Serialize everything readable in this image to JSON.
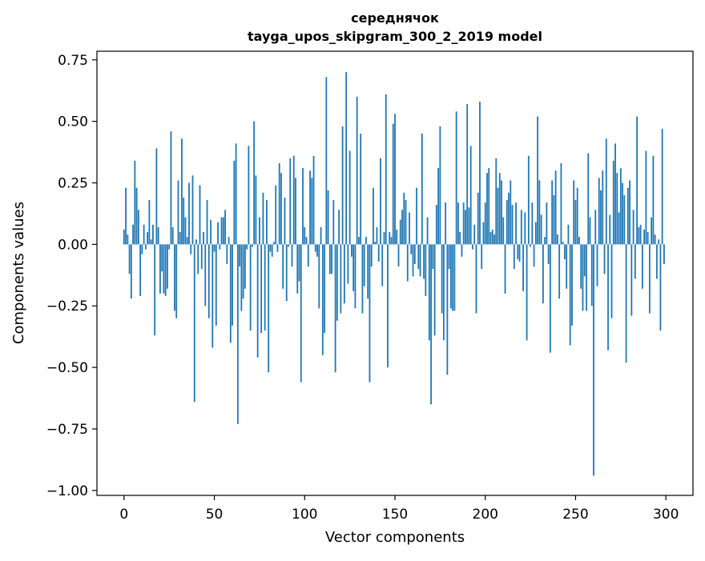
{
  "chart_data": {
    "type": "bar",
    "title": "середнячок",
    "subtitle": "tayga_upos_skipgram_300_2_2019 model",
    "xlabel": "Vector components",
    "ylabel": "Components values",
    "xlim": [
      -15,
      315
    ],
    "ylim": [
      -1.02,
      0.785
    ],
    "xticks": [
      0,
      50,
      100,
      150,
      200,
      250,
      300
    ],
    "xtick_labels": [
      "0",
      "50",
      "100",
      "150",
      "200",
      "250",
      "300"
    ],
    "yticks": [
      -1.0,
      -0.75,
      -0.5,
      -0.25,
      0.0,
      0.25,
      0.5,
      0.75
    ],
    "ytick_labels": [
      "−1.00",
      "−0.75",
      "−0.50",
      "−0.25",
      "0.00",
      "0.25",
      "0.50",
      "0.75"
    ],
    "grid": false,
    "bar_color": "#1f77b4",
    "x": [
      0,
      1,
      2,
      3,
      4,
      5,
      6,
      7,
      8,
      9,
      10,
      11,
      12,
      13,
      14,
      15,
      16,
      17,
      18,
      19,
      20,
      21,
      22,
      23,
      24,
      25,
      26,
      27,
      28,
      29,
      30,
      31,
      32,
      33,
      34,
      35,
      36,
      37,
      38,
      39,
      40,
      41,
      42,
      43,
      44,
      45,
      46,
      47,
      48,
      49,
      50,
      51,
      52,
      53,
      54,
      55,
      56,
      57,
      58,
      59,
      60,
      61,
      62,
      63,
      64,
      65,
      66,
      67,
      68,
      69,
      70,
      71,
      72,
      73,
      74,
      75,
      76,
      77,
      78,
      79,
      80,
      81,
      82,
      83,
      84,
      85,
      86,
      87,
      88,
      89,
      90,
      91,
      92,
      93,
      94,
      95,
      96,
      97,
      98,
      99,
      100,
      101,
      102,
      103,
      104,
      105,
      106,
      107,
      108,
      109,
      110,
      111,
      112,
      113,
      114,
      115,
      116,
      117,
      118,
      119,
      120,
      121,
      122,
      123,
      124,
      125,
      126,
      127,
      128,
      129,
      130,
      131,
      132,
      133,
      134,
      135,
      136,
      137,
      138,
      139,
      140,
      141,
      142,
      143,
      144,
      145,
      146,
      147,
      148,
      149,
      150,
      151,
      152,
      153,
      154,
      155,
      156,
      157,
      158,
      159,
      160,
      161,
      162,
      163,
      164,
      165,
      166,
      167,
      168,
      169,
      170,
      171,
      172,
      173,
      174,
      175,
      176,
      177,
      178,
      179,
      180,
      181,
      182,
      183,
      184,
      185,
      186,
      187,
      188,
      189,
      190,
      191,
      192,
      193,
      194,
      195,
      196,
      197,
      198,
      199,
      200,
      201,
      202,
      203,
      204,
      205,
      206,
      207,
      208,
      209,
      210,
      211,
      212,
      213,
      214,
      215,
      216,
      217,
      218,
      219,
      220,
      221,
      222,
      223,
      224,
      225,
      226,
      227,
      228,
      229,
      230,
      231,
      232,
      233,
      234,
      235,
      236,
      237,
      238,
      239,
      240,
      241,
      242,
      243,
      244,
      245,
      246,
      247,
      248,
      249,
      250,
      251,
      252,
      253,
      254,
      255,
      256,
      257,
      258,
      259,
      260,
      261,
      262,
      263,
      264,
      265,
      266,
      267,
      268,
      269,
      270,
      271,
      272,
      273,
      274,
      275,
      276,
      277,
      278,
      279,
      280,
      281,
      282,
      283,
      284,
      285,
      286,
      287,
      288,
      289,
      290,
      291,
      292,
      293,
      294,
      295,
      296,
      297,
      298,
      299
    ],
    "values": [
      0.06,
      0.23,
      0.04,
      -0.12,
      -0.22,
      0.08,
      0.34,
      0.23,
      0.14,
      -0.21,
      -0.04,
      0.08,
      -0.02,
      0.05,
      0.18,
      0.02,
      0.08,
      -0.37,
      0.39,
      0.07,
      -0.2,
      -0.11,
      -0.2,
      -0.21,
      -0.18,
      -0.02,
      0.46,
      0.07,
      -0.27,
      -0.3,
      0.26,
      0.05,
      0.43,
      0.19,
      0.11,
      0.03,
      0.25,
      -0.04,
      0.28,
      -0.64,
      0.02,
      -0.12,
      0.24,
      -0.1,
      0.05,
      -0.25,
      0.18,
      -0.3,
      0.1,
      -0.42,
      -0.03,
      -0.33,
      0.09,
      -0.02,
      0.11,
      0.11,
      0.14,
      -0.08,
      0.03,
      -0.4,
      -0.33,
      0.34,
      0.41,
      -0.73,
      -0.09,
      -0.27,
      -0.22,
      -0.18,
      -0.02,
      0.4,
      -0.35,
      -0.01,
      0.5,
      0.28,
      -0.46,
      0.11,
      -0.36,
      0.21,
      -0.35,
      0.18,
      -0.52,
      -0.03,
      -0.05,
      0.01,
      0.24,
      -0.03,
      0.33,
      0.29,
      -0.18,
      0.19,
      -0.23,
      -0.01,
      0.35,
      -0.09,
      0.36,
      0.27,
      -0.2,
      -0.15,
      -0.56,
      0.31,
      0.07,
      0.03,
      -0.09,
      0.3,
      0.27,
      0.36,
      -0.03,
      -0.05,
      -0.26,
      0.07,
      -0.45,
      -0.36,
      0.68,
      0.22,
      -0.12,
      -0.12,
      0.18,
      -0.52,
      -0.31,
      0.14,
      -0.28,
      0.48,
      -0.24,
      0.7,
      -0.16,
      0.38,
      -0.05,
      -0.19,
      -0.26,
      0.6,
      0.03,
      0.45,
      -0.28,
      -0.17,
      0.03,
      -0.22,
      -0.56,
      -0.09,
      0.23,
      0.01,
      0.07,
      -0.07,
      0.35,
      -0.17,
      0.05,
      0.61,
      -0.5,
      0.05,
      0.03,
      0.49,
      0.53,
      0.06,
      -0.09,
      0.1,
      0.14,
      0.21,
      0.18,
      -0.15,
      0.13,
      -0.04,
      -0.13,
      -0.08,
      0.23,
      -0.1,
      -0.13,
      0.45,
      -0.14,
      -0.21,
      0.11,
      -0.39,
      -0.65,
      -0.1,
      -0.37,
      0.16,
      0.31,
      0.48,
      -0.28,
      -0.39,
      0.17,
      -0.53,
      -0.1,
      -0.26,
      -0.27,
      -0.27,
      0.54,
      0.17,
      0.05,
      -0.05,
      0.17,
      0.14,
      0.57,
      0.15,
      0.4,
      -0.02,
      0.08,
      -0.28,
      0.21,
      0.58,
      -0.1,
      0.09,
      0.17,
      0.29,
      0.31,
      0.05,
      0.06,
      0.04,
      0.35,
      0.23,
      0.29,
      0.26,
      0.11,
      -0.2,
      0.18,
      0.21,
      0.26,
      0.16,
      -0.1,
      0.17,
      -0.06,
      -0.07,
      0.14,
      -0.19,
      0.13,
      -0.39,
      0.36,
      -0.01,
      0.17,
      -0.09,
      0.09,
      0.52,
      0.26,
      0.12,
      -0.24,
      0.03,
      0.17,
      -0.08,
      -0.44,
      0.26,
      0.2,
      0.3,
      0.04,
      -0.22,
      0.33,
      0.01,
      -0.06,
      -0.18,
      0.08,
      -0.41,
      -0.33,
      0.26,
      0.18,
      0.23,
      0.03,
      -0.18,
      -0.27,
      -0.13,
      -0.27,
      0.37,
      0.11,
      -0.25,
      -0.94,
      0.14,
      -0.17,
      0.27,
      0.22,
      0.3,
      -0.12,
      0.43,
      -0.43,
      0.12,
      -0.3,
      0.34,
      0.41,
      0.29,
      0.13,
      0.31,
      0.25,
      0.2,
      -0.48,
      0.23,
      0.26,
      -0.29,
      0.14,
      -0.14,
      0.52,
      0.07,
      0.08,
      -0.18,
      0.06,
      0.38,
      0.05,
      -0.28,
      0.11,
      0.36,
      0.04,
      -0.14,
      0.02,
      -0.35,
      0.47,
      -0.08
    ]
  }
}
